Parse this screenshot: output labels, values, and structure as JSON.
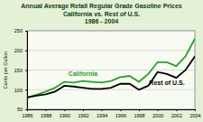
{
  "chart_data": {
    "type": "line",
    "title": "Annual Average Retail Regular Grade Gasoline Prices",
    "subtitle": [
      "California vs. Rest of U.S.",
      "1986 - 2004"
    ],
    "y_label": "Cents per Gallon",
    "x": [
      1986,
      1987,
      1988,
      1989,
      1990,
      1991,
      1992,
      1993,
      1994,
      1995,
      1996,
      1997,
      1998,
      1999,
      2000,
      2001,
      2002,
      2003,
      2004
    ],
    "series": [
      {
        "name": "California",
        "color": "#2e9e2e",
        "values": [
          80,
          87,
          95,
          105,
          120,
          118,
          122,
          120,
          118,
          122,
          132,
          135,
          120,
          140,
          170,
          170,
          160,
          185,
          230
        ]
      },
      {
        "name": "Rest of U.S.",
        "color": "#000000",
        "values": [
          80,
          85,
          88,
          95,
          110,
          108,
          105,
          102,
          102,
          105,
          115,
          115,
          100,
          110,
          145,
          140,
          130,
          150,
          185
        ]
      }
    ],
    "xlim": [
      1986,
      2004
    ],
    "xticks": [
      1986,
      1988,
      1990,
      1992,
      1994,
      1996,
      1998,
      2000,
      2002,
      2004
    ],
    "ylim": [
      50,
      250
    ],
    "yticks": [
      50,
      100,
      150,
      200,
      250
    ],
    "grid": true
  }
}
